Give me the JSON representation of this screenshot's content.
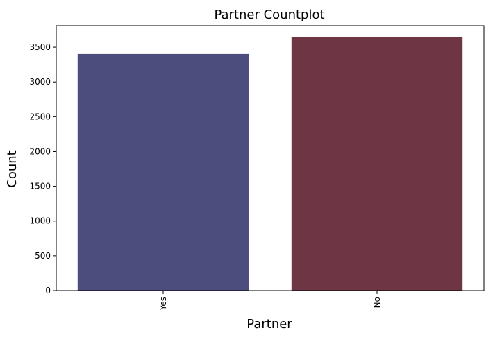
{
  "chart_data": {
    "type": "bar",
    "title": "Partner Countplot",
    "xlabel": "Partner",
    "ylabel": "Count",
    "categories": [
      "Yes",
      "No"
    ],
    "values": [
      3402,
      3641
    ],
    "colors": [
      "#4c4c7d",
      "#6e3644"
    ],
    "ylim": [
      0,
      3810
    ],
    "yticks": [
      0,
      500,
      1000,
      1500,
      2000,
      2500,
      3000,
      3500
    ],
    "grid": false,
    "xtick_rotation": 90
  }
}
